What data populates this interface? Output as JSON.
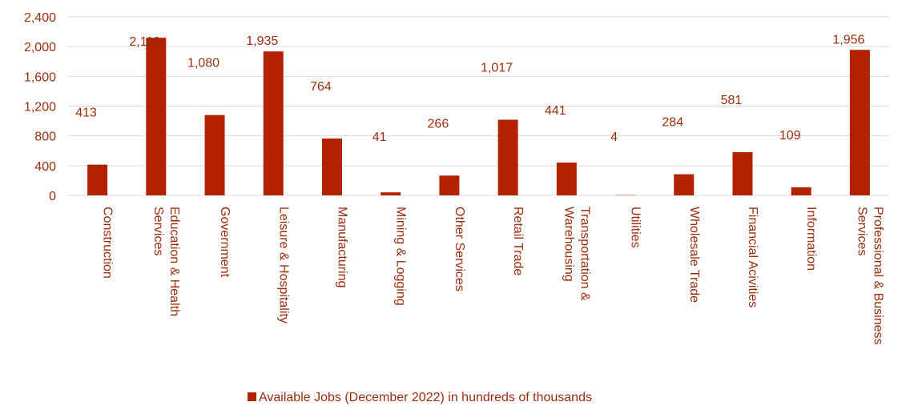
{
  "chart_data": {
    "type": "bar",
    "title": "",
    "xlabel": "",
    "ylabel": "",
    "ylim": [
      0,
      2400
    ],
    "yticks": [
      "0",
      "400",
      "800",
      "1,200",
      "1,600",
      "2,000",
      "2,400"
    ],
    "grid": true,
    "legend_position": "bottom-center",
    "colors": {
      "bar": "#b22200",
      "text": "#9b2d0f",
      "grid": "#d9d9d9"
    },
    "categories": [
      [
        "Construction"
      ],
      [
        "Education & Health",
        "Services"
      ],
      [
        "Government"
      ],
      [
        "Leisure & Hospitality"
      ],
      [
        "Manufacturing"
      ],
      [
        "Mining  & Logging"
      ],
      [
        "Other Services"
      ],
      [
        "Retail Trade"
      ],
      [
        "Transportation &",
        "Warehousing"
      ],
      [
        "Utilities"
      ],
      [
        "Wholesale Trade"
      ],
      [
        "Financial Acivities"
      ],
      [
        "Information"
      ],
      [
        "Professional & Business",
        "Services"
      ]
    ],
    "series": [
      {
        "name": "Available  Jobs (December  2022) in hundreds  of thousands",
        "values": [
          413,
          2119,
          1080,
          1935,
          764,
          41,
          266,
          1017,
          441,
          4,
          284,
          581,
          109,
          1956
        ],
        "labels": [
          "413",
          "2,119",
          "1,080",
          "1,935",
          "764",
          "41",
          "266",
          "1,017",
          "441",
          "4",
          "284",
          "581",
          "109",
          "1,956"
        ]
      }
    ]
  }
}
